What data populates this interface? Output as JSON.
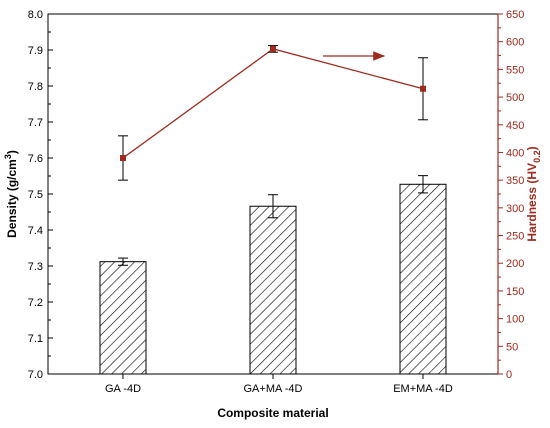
{
  "chart_data": {
    "type": "bar",
    "categories": [
      "GA -4D",
      "GA+MA -4D",
      "EM+MA -4D"
    ],
    "xlabel": "Composite material",
    "ylabel_left": {
      "main": "Density (g/cm",
      "sup": "3",
      "close": ")"
    },
    "ylabel_right": {
      "main": "Hardness (HV",
      "sub": "0.2",
      "close": ")"
    },
    "ylim_left": [
      7.0,
      8.0
    ],
    "ylim_right": [
      0,
      650
    ],
    "yticks_left": [
      "7.0",
      "7.1",
      "7.2",
      "7.3",
      "7.4",
      "7.5",
      "7.6",
      "7.7",
      "7.8",
      "7.9",
      "8.0"
    ],
    "yticks_right": [
      "0",
      "50",
      "100",
      "150",
      "200",
      "250",
      "300",
      "350",
      "400",
      "450",
      "500",
      "550",
      "600",
      "650"
    ],
    "series": [
      {
        "kind": "bar",
        "axis": "left",
        "values": [
          7.312,
          7.466,
          7.527
        ],
        "errors": [
          0.01,
          0.032,
          0.024
        ],
        "color": "#000000",
        "pattern": "diagonal-hatch"
      },
      {
        "kind": "line",
        "axis": "right",
        "values": [
          390,
          587,
          515
        ],
        "errors": [
          40,
          6,
          56
        ],
        "color": "#a02a1e",
        "marker": "square"
      }
    ],
    "annotations": [
      {
        "type": "arrow",
        "direction": "right",
        "color": "#a02a1e",
        "points_to": "right-axis"
      }
    ],
    "grid": false,
    "legend": "none",
    "colors": {
      "left_axis": "#000000",
      "right_axis": "#a02a1e"
    }
  }
}
